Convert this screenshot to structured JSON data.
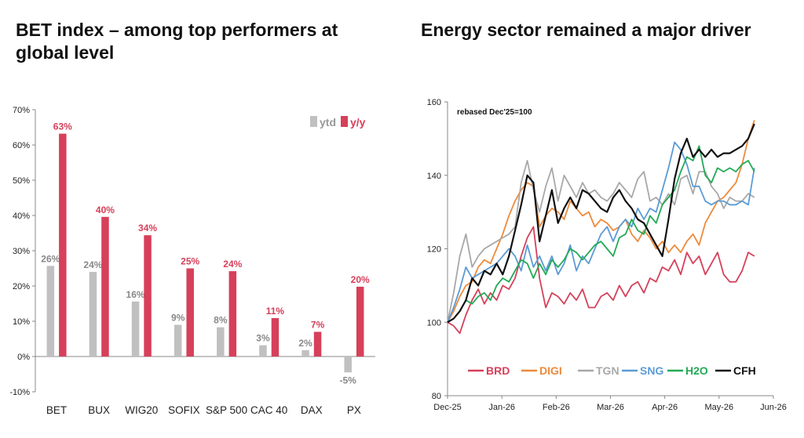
{
  "left_panel": {
    "title": "BET index – among top performers at global level"
  },
  "right_panel": {
    "title": "Energy sector remained a major driver"
  },
  "chart_data": [
    {
      "type": "bar",
      "title": "BET index – among top performers at global level",
      "categories": [
        "BET",
        "BUX",
        "WIG20",
        "SOFIX",
        "S&P 500",
        "CAC 40",
        "DAX",
        "PX"
      ],
      "series": [
        {
          "name": "ytd",
          "color": "#c0c0c0",
          "values": [
            25.7,
            24.0,
            15.6,
            9.0,
            8.3,
            3.2,
            1.8,
            -4.5
          ],
          "labels": [
            "26%",
            "24%",
            "16%",
            "9%",
            "8%",
            "3%",
            "2%",
            "-5%"
          ]
        },
        {
          "name": "y/y",
          "color": "#d6405a",
          "values": [
            63.2,
            39.6,
            34.4,
            25.0,
            24.2,
            10.9,
            7.0,
            19.8
          ],
          "labels": [
            "63%",
            "40%",
            "34%",
            "25%",
            "24%",
            "11%",
            "7%",
            "20%"
          ]
        }
      ],
      "ylim": [
        -10,
        70
      ],
      "yticks": [
        "-10%",
        "0%",
        "10%",
        "20%",
        "30%",
        "40%",
        "50%",
        "60%",
        "70%"
      ],
      "legend_position": "top-right",
      "grid": false
    },
    {
      "type": "line",
      "title": "Energy sector remained a major driver",
      "annotation": "rebased Dec'25=100",
      "x_ticks": [
        "Dec-25",
        "Jan-26",
        "Feb-26",
        "Mar-26",
        "Apr-26",
        "May-26",
        "Jun-26"
      ],
      "ylim": [
        80,
        160
      ],
      "yticks": [
        "80",
        "100",
        "120",
        "140",
        "160"
      ],
      "legend_position": "bottom",
      "grid": false,
      "series": [
        {
          "name": "BRD",
          "color": "#d6405a",
          "values": [
            100,
            99,
            97,
            102,
            106,
            109,
            105,
            108,
            106,
            110,
            109,
            112,
            118,
            123,
            126,
            112,
            104,
            108,
            107,
            105,
            108,
            106,
            109,
            104,
            104,
            107,
            108,
            106,
            110,
            107,
            110,
            111,
            108,
            112,
            111,
            115,
            114,
            117,
            113,
            119,
            116,
            118,
            113,
            116,
            119,
            113,
            111,
            111,
            114,
            119,
            118
          ]
        },
        {
          "name": "DIGI",
          "color": "#ee8a3a",
          "values": [
            100,
            103,
            107,
            110,
            111,
            115,
            117,
            116,
            120,
            124,
            129,
            133,
            136,
            138,
            137,
            126,
            129,
            131,
            130,
            128,
            133,
            131,
            129,
            130,
            126,
            128,
            127,
            125,
            126,
            128,
            124,
            122,
            125,
            123,
            120,
            122,
            119,
            121,
            119,
            122,
            124,
            121,
            127,
            130,
            133,
            134,
            136,
            138,
            143,
            150,
            155
          ]
        },
        {
          "name": "TGN",
          "color": "#a8a8a8",
          "values": [
            100,
            108,
            118,
            124,
            115,
            118,
            120,
            121,
            122,
            123,
            124,
            126,
            138,
            144,
            136,
            130,
            137,
            142,
            133,
            140,
            137,
            134,
            138,
            135,
            136,
            134,
            133,
            135,
            138,
            136,
            134,
            139,
            141,
            133,
            134,
            132,
            135,
            132,
            139,
            140,
            135,
            141,
            141,
            137,
            135,
            131,
            134,
            133,
            133,
            135,
            134
          ]
        },
        {
          "name": "SNG",
          "color": "#5b9bd5",
          "values": [
            100,
            104,
            109,
            115,
            112,
            113,
            114,
            115,
            116,
            118,
            120,
            118,
            114,
            121,
            115,
            118,
            114,
            118,
            113,
            116,
            121,
            114,
            118,
            116,
            120,
            124,
            126,
            122,
            126,
            128,
            126,
            131,
            128,
            131,
            130,
            136,
            142,
            149,
            147,
            143,
            137,
            137,
            133,
            132,
            133,
            133,
            132,
            132,
            133,
            132,
            142
          ]
        },
        {
          "name": "H2O",
          "color": "#22aa55",
          "values": [
            100,
            101,
            103,
            106,
            105,
            107,
            108,
            106,
            110,
            112,
            111,
            114,
            117,
            116,
            112,
            116,
            113,
            117,
            115,
            117,
            120,
            119,
            117,
            119,
            121,
            122,
            120,
            118,
            123,
            124,
            128,
            125,
            124,
            129,
            127,
            132,
            134,
            136,
            141,
            145,
            144,
            148,
            140,
            138,
            142,
            141,
            142,
            141,
            143,
            144,
            141
          ]
        },
        {
          "name": "CFH",
          "color": "#111111",
          "values": [
            100,
            101,
            103,
            106,
            112,
            110,
            114,
            113,
            116,
            113,
            118,
            125,
            132,
            140,
            138,
            122,
            129,
            136,
            127,
            131,
            134,
            131,
            136,
            135,
            133,
            131,
            130,
            134,
            136,
            133,
            131,
            128,
            127,
            124,
            121,
            118,
            128,
            139,
            146,
            150,
            145,
            147,
            145,
            147,
            145,
            146,
            146,
            147,
            148,
            150,
            154
          ]
        }
      ]
    }
  ]
}
